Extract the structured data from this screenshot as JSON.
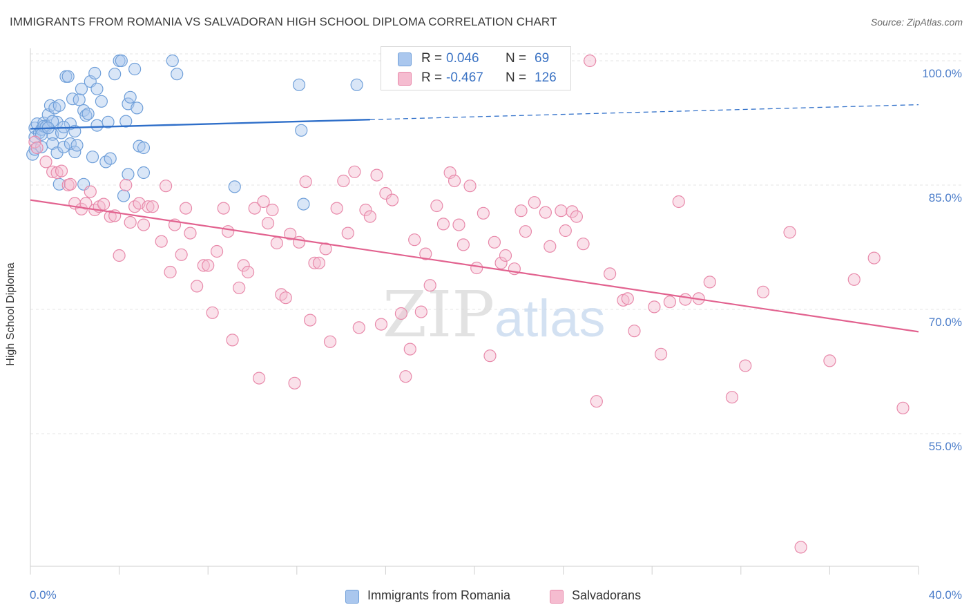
{
  "title": "IMMIGRANTS FROM ROMANIA VS SALVADORAN HIGH SCHOOL DIPLOMA CORRELATION CHART",
  "source": "Source: ZipAtlas.com",
  "watermark": {
    "zip": "ZIP",
    "atlas": "atlas"
  },
  "legend": {
    "rows": [
      {
        "r_label": "R =",
        "r_value": "0.046",
        "n_label": "N =",
        "n_value": "69"
      },
      {
        "r_label": "R =",
        "r_value": "-0.467",
        "n_label": "N =",
        "n_value": "126"
      }
    ]
  },
  "bottom_legend": {
    "series1": "Immigrants from Romania",
    "series2": "Salvadorans"
  },
  "colors": {
    "blue_fill": "#aac7ee",
    "blue_stroke": "#6f9fd9",
    "blue_line": "#2f6fc9",
    "pink_fill": "#f5bcd0",
    "pink_stroke": "#e889aa",
    "pink_line": "#e2628f",
    "tick_text": "#4a7cc9",
    "grid": "#e6e6e6"
  },
  "chart_data": {
    "type": "scatter",
    "title": "IMMIGRANTS FROM ROMANIA VS SALVADORAN HIGH SCHOOL DIPLOMA CORRELATION CHART",
    "xlabel": "",
    "ylabel": "High School Diploma",
    "xlim": [
      0,
      40
    ],
    "ylim": [
      39,
      101.5
    ],
    "x_tick_labels": [
      "0.0%",
      "40.0%"
    ],
    "y_ticks": [
      {
        "value": 100,
        "label": "100.0%"
      },
      {
        "value": 85,
        "label": "85.0%"
      },
      {
        "value": 70,
        "label": "70.0%"
      },
      {
        "value": 55,
        "label": "55.0%"
      }
    ],
    "series": [
      {
        "name": "Immigrants from Romania",
        "color": "#6f9fd9",
        "r": 0.046,
        "n": 69,
        "trend": {
          "x0": 0,
          "y0": 91.8,
          "x1": 15.3,
          "y1": 92.9,
          "x_dash_end": 40,
          "y_dash_end": 94.7
        },
        "points": [
          [
            0.1,
            88.7
          ],
          [
            0.2,
            89.3
          ],
          [
            0.2,
            90.8
          ],
          [
            0.2,
            91.9
          ],
          [
            0.3,
            92.4
          ],
          [
            0.4,
            91.3
          ],
          [
            0.5,
            91.7
          ],
          [
            0.5,
            89.6
          ],
          [
            0.6,
            92.5
          ],
          [
            0.6,
            92.1
          ],
          [
            0.7,
            92.0
          ],
          [
            0.8,
            93.5
          ],
          [
            0.9,
            94.6
          ],
          [
            1.0,
            91.1
          ],
          [
            1.0,
            90.0
          ],
          [
            1.1,
            94.3
          ],
          [
            1.2,
            92.6
          ],
          [
            1.2,
            88.9
          ],
          [
            1.3,
            94.6
          ],
          [
            1.4,
            91.3
          ],
          [
            1.5,
            89.6
          ],
          [
            1.6,
            98.1
          ],
          [
            1.7,
            98.1
          ],
          [
            1.8,
            90.0
          ],
          [
            1.8,
            92.4
          ],
          [
            1.9,
            95.4
          ],
          [
            2.0,
            89.0
          ],
          [
            2.0,
            91.5
          ],
          [
            2.1,
            89.8
          ],
          [
            2.2,
            95.3
          ],
          [
            2.3,
            96.6
          ],
          [
            2.4,
            94.0
          ],
          [
            2.5,
            93.4
          ],
          [
            2.6,
            93.6
          ],
          [
            2.7,
            97.5
          ],
          [
            2.8,
            88.4
          ],
          [
            2.9,
            98.5
          ],
          [
            3.0,
            96.6
          ],
          [
            3.0,
            92.2
          ],
          [
            3.2,
            95.1
          ],
          [
            3.4,
            87.8
          ],
          [
            3.5,
            92.6
          ],
          [
            3.6,
            88.2
          ],
          [
            3.8,
            98.4
          ],
          [
            4.0,
            100.0
          ],
          [
            4.1,
            100.0
          ],
          [
            4.2,
            83.7
          ],
          [
            4.3,
            92.7
          ],
          [
            4.4,
            94.8
          ],
          [
            4.5,
            95.6
          ],
          [
            4.7,
            99.0
          ],
          [
            4.8,
            94.3
          ],
          [
            4.9,
            89.7
          ],
          [
            5.1,
            89.5
          ],
          [
            0.5,
            91.1
          ],
          [
            1.3,
            85.1
          ],
          [
            2.4,
            85.1
          ],
          [
            4.4,
            86.3
          ],
          [
            1.0,
            92.7
          ],
          [
            1.5,
            92.0
          ],
          [
            0.8,
            91.9
          ],
          [
            5.1,
            86.5
          ],
          [
            6.4,
            100.0
          ],
          [
            6.6,
            98.4
          ],
          [
            9.2,
            84.8
          ],
          [
            12.3,
            82.7
          ],
          [
            12.1,
            97.1
          ],
          [
            12.2,
            91.6
          ],
          [
            14.7,
            97.1
          ]
        ]
      },
      {
        "name": "Salvadorans",
        "color": "#e889aa",
        "r": -0.467,
        "n": 126,
        "trend": {
          "x0": 0,
          "y0": 83.2,
          "x1": 40,
          "y1": 67.3
        },
        "points": [
          [
            0.2,
            90.2
          ],
          [
            0.3,
            89.5
          ],
          [
            0.7,
            87.8
          ],
          [
            1.0,
            86.6
          ],
          [
            1.2,
            86.5
          ],
          [
            1.4,
            86.7
          ],
          [
            1.7,
            85.0
          ],
          [
            1.8,
            85.1
          ],
          [
            2.0,
            82.8
          ],
          [
            2.3,
            82.1
          ],
          [
            2.5,
            82.8
          ],
          [
            2.7,
            84.2
          ],
          [
            2.9,
            82.0
          ],
          [
            3.1,
            82.4
          ],
          [
            3.3,
            82.7
          ],
          [
            3.6,
            81.2
          ],
          [
            3.8,
            81.3
          ],
          [
            4.0,
            76.5
          ],
          [
            4.3,
            85.0
          ],
          [
            4.5,
            80.5
          ],
          [
            4.7,
            82.4
          ],
          [
            4.9,
            82.8
          ],
          [
            5.1,
            80.2
          ],
          [
            5.3,
            82.4
          ],
          [
            5.5,
            82.4
          ],
          [
            5.9,
            78.2
          ],
          [
            6.1,
            84.9
          ],
          [
            6.3,
            74.5
          ],
          [
            6.5,
            80.2
          ],
          [
            6.8,
            76.6
          ],
          [
            7.0,
            82.2
          ],
          [
            7.2,
            79.2
          ],
          [
            7.5,
            72.8
          ],
          [
            7.8,
            75.3
          ],
          [
            8.0,
            75.3
          ],
          [
            8.2,
            69.6
          ],
          [
            8.4,
            77.0
          ],
          [
            8.7,
            82.2
          ],
          [
            8.9,
            79.4
          ],
          [
            9.1,
            66.3
          ],
          [
            9.4,
            72.6
          ],
          [
            9.6,
            75.3
          ],
          [
            9.8,
            74.5
          ],
          [
            10.1,
            82.2
          ],
          [
            10.3,
            61.7
          ],
          [
            10.5,
            83.0
          ],
          [
            10.7,
            80.4
          ],
          [
            10.9,
            82.0
          ],
          [
            11.1,
            78.0
          ],
          [
            11.3,
            71.8
          ],
          [
            11.5,
            71.4
          ],
          [
            11.7,
            79.1
          ],
          [
            11.9,
            61.1
          ],
          [
            12.1,
            78.1
          ],
          [
            12.4,
            85.4
          ],
          [
            12.6,
            68.7
          ],
          [
            12.8,
            75.6
          ],
          [
            13.0,
            75.6
          ],
          [
            13.3,
            77.3
          ],
          [
            13.5,
            66.1
          ],
          [
            13.8,
            82.2
          ],
          [
            14.1,
            85.5
          ],
          [
            14.3,
            79.2
          ],
          [
            14.6,
            86.6
          ],
          [
            14.8,
            67.8
          ],
          [
            15.1,
            82.0
          ],
          [
            15.3,
            81.2
          ],
          [
            15.6,
            86.2
          ],
          [
            15.8,
            68.2
          ],
          [
            16.0,
            84.0
          ],
          [
            16.3,
            83.2
          ],
          [
            16.7,
            69.5
          ],
          [
            16.9,
            61.9
          ],
          [
            17.1,
            65.2
          ],
          [
            17.3,
            78.4
          ],
          [
            17.6,
            69.7
          ],
          [
            17.8,
            76.7
          ],
          [
            18.0,
            72.9
          ],
          [
            18.3,
            82.5
          ],
          [
            18.6,
            80.3
          ],
          [
            18.9,
            86.5
          ],
          [
            19.1,
            85.5
          ],
          [
            19.3,
            80.2
          ],
          [
            19.5,
            77.8
          ],
          [
            19.8,
            84.9
          ],
          [
            20.1,
            75.0
          ],
          [
            20.4,
            81.6
          ],
          [
            20.7,
            64.4
          ],
          [
            20.9,
            78.1
          ],
          [
            21.2,
            75.6
          ],
          [
            21.4,
            76.5
          ],
          [
            21.8,
            74.9
          ],
          [
            22.1,
            81.9
          ],
          [
            22.3,
            79.4
          ],
          [
            22.7,
            82.9
          ],
          [
            23.2,
            81.7
          ],
          [
            23.4,
            77.6
          ],
          [
            23.9,
            81.9
          ],
          [
            24.1,
            79.5
          ],
          [
            24.4,
            81.8
          ],
          [
            24.6,
            81.2
          ],
          [
            24.9,
            77.9
          ],
          [
            25.2,
            100.0
          ],
          [
            25.5,
            58.9
          ],
          [
            26.1,
            74.3
          ],
          [
            26.7,
            71.1
          ],
          [
            26.9,
            71.3
          ],
          [
            27.2,
            67.4
          ],
          [
            28.1,
            70.3
          ],
          [
            28.4,
            64.6
          ],
          [
            28.8,
            70.9
          ],
          [
            29.2,
            83.0
          ],
          [
            29.5,
            71.2
          ],
          [
            30.1,
            71.3
          ],
          [
            30.6,
            73.3
          ],
          [
            31.6,
            59.4
          ],
          [
            32.2,
            63.2
          ],
          [
            33.0,
            72.1
          ],
          [
            34.2,
            79.3
          ],
          [
            34.7,
            41.3
          ],
          [
            36.0,
            63.8
          ],
          [
            37.1,
            73.6
          ],
          [
            38.0,
            76.2
          ],
          [
            39.3,
            58.1
          ]
        ]
      }
    ]
  }
}
